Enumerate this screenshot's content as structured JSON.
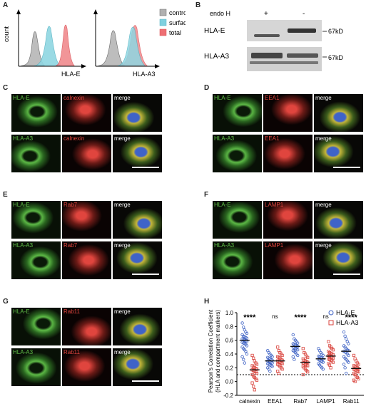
{
  "panels": {
    "A": {
      "letter": "A",
      "count_label": "count",
      "plot1_xlabel": "HLA-E",
      "plot2_xlabel": "HLA-A3",
      "legend": [
        {
          "label": "control",
          "color": "#b0b0b0"
        },
        {
          "label": "surface",
          "color": "#7fd0df"
        },
        {
          "label": "total",
          "color": "#ee6f73"
        }
      ]
    },
    "B": {
      "letter": "B",
      "endo_label": "endo H",
      "lanes": [
        "+",
        "-"
      ],
      "rows": [
        {
          "name": "HLA-E",
          "size": "67kD"
        },
        {
          "name": "HLA-A3",
          "size": "67kD"
        }
      ]
    },
    "C": {
      "letter": "C",
      "top": [
        "HLA-E",
        "calnexin",
        "merge"
      ],
      "bottom": [
        "HLA-A3",
        "calnexin",
        "merge"
      ]
    },
    "D": {
      "letter": "D",
      "top": [
        "HLA-E",
        "EEA1",
        "merge"
      ],
      "bottom": [
        "HLA-A3",
        "EEA1",
        "merge"
      ]
    },
    "E": {
      "letter": "E",
      "top": [
        "HLA-E",
        "Rab7",
        "merge"
      ],
      "bottom": [
        "HLA-A3",
        "Rab7",
        "merge"
      ]
    },
    "F": {
      "letter": "F",
      "top": [
        "HLA-E",
        "LAMP1",
        "merge"
      ],
      "bottom": [
        "HLA-A3",
        "LAMP1",
        "merge"
      ]
    },
    "G": {
      "letter": "G",
      "top": [
        "HLA-E",
        "Rab11",
        "merge"
      ],
      "bottom": [
        "HLA-A3",
        "Rab11",
        "merge"
      ]
    },
    "H": {
      "letter": "H"
    }
  },
  "colors": {
    "green": "#62c24a",
    "red": "#e0453e",
    "blue": "#3f63c8",
    "hla_e": "#3e62c4",
    "hla_a3": "#d9423b"
  },
  "chart_data": {
    "type": "scatter",
    "ylabel": "Pearson's Correlation Coefficient",
    "ylabel2": "(HLA and compartment markers)",
    "ylim": [
      -0.2,
      1.0
    ],
    "yticks": [
      "-0.2",
      "0.0",
      "0.2",
      "0.4",
      "0.6",
      "0.8",
      "1.0"
    ],
    "categories": [
      "calnexin",
      "EEA1",
      "Rab7",
      "LAMP1",
      "Rab11"
    ],
    "reference_line": 0.1,
    "significance": [
      "****",
      "ns",
      "****",
      "ns",
      "****"
    ],
    "legend_position": "top-right",
    "series": [
      {
        "name": "HLA-E",
        "marker": "circle",
        "color": "#3e62c4",
        "means": [
          0.6,
          0.3,
          0.51,
          0.33,
          0.44
        ],
        "points": [
          [
            0.85,
            0.79,
            0.75,
            0.72,
            0.7,
            0.68,
            0.66,
            0.65,
            0.64,
            0.63,
            0.62,
            0.61,
            0.6,
            0.59,
            0.58,
            0.57,
            0.56,
            0.55,
            0.54,
            0.52,
            0.5,
            0.48,
            0.46,
            0.44,
            0.4,
            0.36,
            0.32,
            0.27
          ],
          [
            0.45,
            0.42,
            0.4,
            0.38,
            0.36,
            0.35,
            0.34,
            0.33,
            0.32,
            0.31,
            0.3,
            0.3,
            0.29,
            0.28,
            0.27,
            0.26,
            0.25,
            0.24,
            0.23,
            0.22,
            0.2,
            0.18,
            0.15
          ],
          [
            0.68,
            0.62,
            0.6,
            0.58,
            0.56,
            0.55,
            0.54,
            0.53,
            0.52,
            0.51,
            0.5,
            0.49,
            0.48,
            0.47,
            0.46,
            0.45,
            0.44,
            0.42,
            0.4,
            0.38,
            0.36,
            0.32
          ],
          [
            0.48,
            0.45,
            0.42,
            0.4,
            0.38,
            0.37,
            0.36,
            0.35,
            0.34,
            0.33,
            0.32,
            0.31,
            0.3,
            0.29,
            0.28,
            0.26,
            0.24,
            0.22,
            0.2,
            0.18
          ],
          [
            0.72,
            0.66,
            0.62,
            0.58,
            0.55,
            0.52,
            0.5,
            0.48,
            0.46,
            0.45,
            0.44,
            0.43,
            0.42,
            0.4,
            0.38,
            0.36,
            0.34,
            0.32,
            0.3,
            0.28,
            0.25,
            0.2,
            0.12
          ]
        ]
      },
      {
        "name": "HLA-A3",
        "marker": "square",
        "color": "#d9423b",
        "means": [
          0.17,
          0.3,
          0.28,
          0.37,
          0.19
        ],
        "points": [
          [
            0.38,
            0.34,
            0.3,
            0.27,
            0.25,
            0.23,
            0.21,
            0.2,
            0.19,
            0.18,
            0.17,
            0.16,
            0.15,
            0.14,
            0.12,
            0.1,
            0.08,
            0.06,
            0.04,
            0.02,
            -0.02,
            -0.07,
            -0.12
          ],
          [
            0.5,
            0.45,
            0.42,
            0.4,
            0.38,
            0.36,
            0.35,
            0.34,
            0.32,
            0.31,
            0.3,
            0.29,
            0.28,
            0.27,
            0.26,
            0.25,
            0.24,
            0.22,
            0.2,
            0.18,
            0.15,
            0.12
          ],
          [
            0.48,
            0.42,
            0.4,
            0.37,
            0.35,
            0.33,
            0.31,
            0.3,
            0.29,
            0.28,
            0.27,
            0.26,
            0.25,
            0.24,
            0.23,
            0.22,
            0.2,
            0.18,
            0.16,
            0.14,
            0.1
          ],
          [
            0.58,
            0.52,
            0.5,
            0.48,
            0.46,
            0.44,
            0.42,
            0.41,
            0.4,
            0.39,
            0.38,
            0.37,
            0.36,
            0.35,
            0.34,
            0.33,
            0.32,
            0.31,
            0.3,
            0.28,
            0.26,
            0.24,
            0.2
          ],
          [
            0.38,
            0.33,
            0.3,
            0.27,
            0.25,
            0.23,
            0.22,
            0.21,
            0.2,
            0.19,
            0.18,
            0.17,
            0.16,
            0.15,
            0.14,
            0.12,
            0.1,
            0.08,
            0.06,
            0.04,
            0.02,
            0.0
          ]
        ]
      }
    ]
  }
}
